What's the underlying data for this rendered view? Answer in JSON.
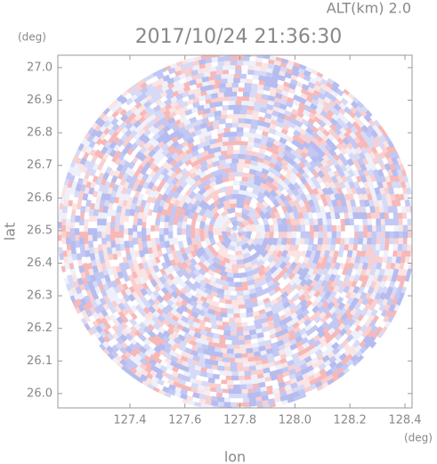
{
  "chart_data": {
    "type": "ppi",
    "altitude_label": "ALT(km) 2.0",
    "title": "2017/10/24 21:36:30",
    "y_unit": "(deg)",
    "x_unit": "(deg)",
    "xlabel": "lon",
    "ylabel": "lat",
    "xlim": [
      127.138,
      128.426
    ],
    "ylim": [
      25.956,
      27.038
    ],
    "xticks": [
      127.4,
      127.6,
      127.8,
      {
        "value": 128.0,
        "label": "128.0"
      },
      128.2,
      128.4
    ],
    "yticks": [
      {
        "value": 26.0,
        "label": "26.0"
      },
      26.1,
      26.2,
      26.3,
      26.4,
      26.5,
      26.6,
      26.7,
      26.8,
      26.9,
      {
        "value": 27.0,
        "label": "27.0"
      }
    ]
  }
}
